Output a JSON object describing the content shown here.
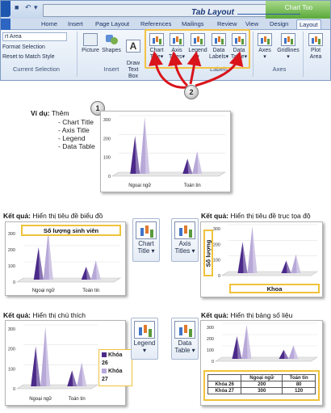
{
  "ribbon": {
    "tab_layout_callout": "Tab Layout",
    "chart_tools": "Chart Too",
    "tabs": [
      "Home",
      "Insert",
      "Page Layout",
      "References",
      "Mailings",
      "Review",
      "View",
      "Design",
      "Layout"
    ],
    "current_selection": {
      "dropdown_value": "rt Area",
      "format_selection": "Format Selection",
      "reset_style": "Reset to Match Style",
      "group_label": "Current Selection"
    },
    "insert_group": {
      "buttons": [
        "Picture",
        "Shapes",
        "Draw\nText Box"
      ],
      "label": "Insert"
    },
    "labels_group": {
      "buttons": [
        {
          "line1": "Chart",
          "line2": "Title"
        },
        {
          "line1": "Axis",
          "line2": "Titles"
        },
        {
          "line1": "Legend",
          "line2": ""
        },
        {
          "line1": "Data",
          "line2": "Labels"
        },
        {
          "line1": "Data",
          "line2": "Table"
        }
      ],
      "label": "Labels"
    },
    "axes_group": {
      "buttons": [
        "Axes",
        "Gridlines"
      ],
      "label": "Axes"
    },
    "extra_group": {
      "line1": "Plot",
      "line2": "Area"
    },
    "badge_2": "2"
  },
  "example": {
    "badge_1": "1",
    "lead": "Ví dụ:",
    "lead_rest": " Thêm",
    "bullets": [
      "- Chart Title",
      "- Axis Title",
      "- Legend",
      "- Data Table"
    ]
  },
  "results": {
    "chart_title": {
      "label_bold": "Kết quả:",
      "label_rest": " Hiển thị tiêu đề biểu đồ",
      "title_text": "Số lượng sinh viên",
      "button_line1": "Chart",
      "button_line2": "Title"
    },
    "axis_titles": {
      "label_bold": "Kết quả:",
      "label_rest": " Hiển thị tiêu đề trục tọa độ",
      "y_title": "Số lượng",
      "x_title": "Khoa",
      "button_line1": "Axis",
      "button_line2": "Titles"
    },
    "legend": {
      "label_bold": "Kết quả:",
      "label_rest": " Hiển thị chú thích",
      "entries": [
        "Khóa 26",
        "Khóa 27"
      ],
      "button_line1": "Legend"
    },
    "data_table": {
      "label_bold": "Kết quả:",
      "label_rest": " Hiển thị bảng số liệu",
      "button_line1": "Data",
      "button_line2": "Table",
      "headers": [
        "",
        "Ngoại ngữ",
        "Toán tin"
      ],
      "rows": [
        [
          "Khóa 26",
          "200",
          "80"
        ],
        [
          "Khóa 27",
          "300",
          "120"
        ]
      ]
    }
  },
  "chart_data": {
    "type": "bar",
    "categories": [
      "Ngoại ngữ",
      "Toán tin"
    ],
    "series": [
      {
        "values": [
          200,
          80
        ]
      },
      {
        "values": [
          300,
          120
        ]
      }
    ],
    "yticks": [
      "0",
      "100",
      "200",
      "300"
    ],
    "ylim": [
      0,
      300
    ],
    "colors": [
      "#4b2a8a",
      "#b7a8d8"
    ]
  }
}
